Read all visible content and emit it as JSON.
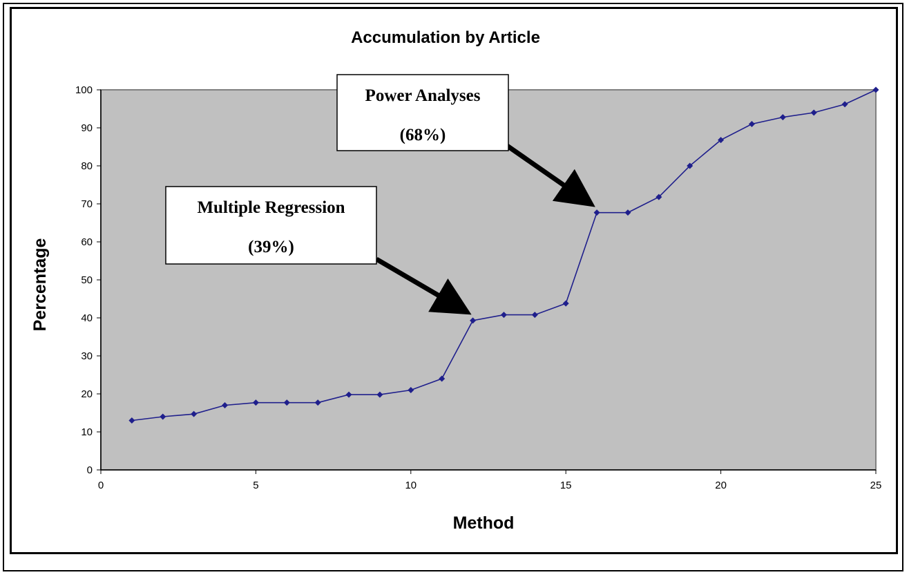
{
  "chart_data": {
    "type": "line",
    "title": "Accumulation by Article",
    "xlabel": "Method",
    "ylabel": "Percentage",
    "xlim": [
      0,
      25
    ],
    "ylim": [
      0,
      100
    ],
    "xticks": [
      0,
      5,
      10,
      15,
      20,
      25
    ],
    "yticks": [
      0,
      10,
      20,
      30,
      40,
      50,
      60,
      70,
      80,
      90,
      100
    ],
    "grid": false,
    "legend": "none",
    "plot_background": "#c0c0c0",
    "series": [
      {
        "color": "#1f1f8c",
        "x": [
          1,
          2,
          3,
          4,
          5,
          6,
          7,
          8,
          9,
          10,
          11,
          12,
          13,
          14,
          15,
          16,
          17,
          18,
          19,
          20,
          21,
          22,
          23,
          24,
          25
        ],
        "values": [
          13,
          14,
          14.7,
          17,
          17.7,
          17.7,
          17.7,
          19.8,
          19.8,
          21,
          24,
          39.3,
          40.8,
          40.8,
          43.8,
          67.7,
          67.7,
          71.8,
          80,
          86.8,
          91,
          92.8,
          94,
          96.2,
          100
        ]
      }
    ],
    "annotations": [
      {
        "line1": "Power Analyses",
        "line2": "(68%)",
        "target_x": 16,
        "target_y": 67.7
      },
      {
        "line1": "Multiple Regression",
        "line2": "(39%)",
        "target_x": 12,
        "target_y": 39.3
      }
    ]
  }
}
